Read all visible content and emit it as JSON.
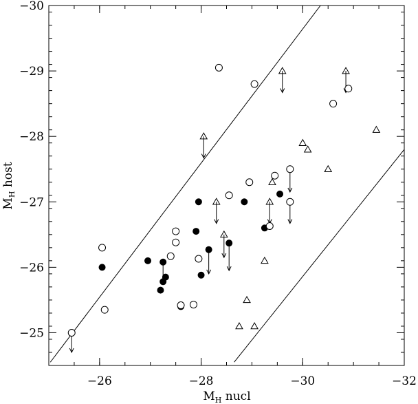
{
  "chart_data": {
    "type": "scatter",
    "title": "",
    "xlabel": {
      "base": "M",
      "sub": "H",
      "rest": " nucl"
    },
    "ylabel": {
      "base": "M",
      "sub": "H",
      "rest": " host"
    },
    "xlim": [
      -25,
      -32
    ],
    "ylim": [
      -24.5,
      -30
    ],
    "x_ticks": [
      -26,
      -28,
      -30,
      -32
    ],
    "y_ticks": [
      -25,
      -26,
      -27,
      -28,
      -29,
      -30
    ],
    "x_minor_step": 0.5,
    "y_minor_step": 0.2,
    "grid": false,
    "reference_lines": [
      {
        "points": [
          [
            -25.03,
            -24.55
          ],
          [
            -30.35,
            -30.0
          ]
        ]
      },
      {
        "points": [
          [
            -28.65,
            -24.55
          ],
          [
            -32.0,
            -27.8
          ]
        ]
      }
    ],
    "series": [
      {
        "marker": "filled-circle",
        "points": [
          [
            -26.05,
            -26.0
          ],
          [
            -26.95,
            -26.1
          ],
          [
            -27.25,
            -26.08
          ],
          [
            -27.3,
            -25.85
          ],
          [
            -27.25,
            -25.78
          ],
          [
            -27.2,
            -25.65
          ],
          [
            -27.6,
            -25.4
          ],
          [
            -27.95,
            -27.0
          ],
          [
            -27.9,
            -26.55
          ],
          [
            -28.15,
            -26.27
          ],
          [
            -28.0,
            -25.88
          ],
          [
            -28.55,
            -26.37
          ],
          [
            -28.85,
            -27.0
          ],
          [
            -29.25,
            -26.6
          ],
          [
            -29.55,
            -27.12
          ]
        ]
      },
      {
        "marker": "open-circle",
        "points": [
          [
            -25.45,
            -25.0
          ],
          [
            -26.05,
            -26.3
          ],
          [
            -26.1,
            -25.35
          ],
          [
            -27.5,
            -26.55
          ],
          [
            -27.5,
            -26.38
          ],
          [
            -27.4,
            -26.17
          ],
          [
            -27.6,
            -25.42
          ],
          [
            -27.85,
            -25.43
          ],
          [
            -27.95,
            -26.13
          ],
          [
            -28.35,
            -29.05
          ],
          [
            -28.55,
            -27.1
          ],
          [
            -28.95,
            -27.3
          ],
          [
            -29.05,
            -28.8
          ],
          [
            -29.35,
            -26.63
          ],
          [
            -29.45,
            -27.4
          ],
          [
            -29.75,
            -27.5
          ],
          [
            -29.75,
            -27.0
          ],
          [
            -30.6,
            -28.5
          ],
          [
            -30.9,
            -28.73
          ]
        ]
      },
      {
        "marker": "open-triangle",
        "points": [
          [
            -29.6,
            -29.0
          ],
          [
            -28.05,
            -28.0
          ],
          [
            -28.3,
            -27.0
          ],
          [
            -28.45,
            -26.5
          ],
          [
            -29.35,
            -27.0
          ],
          [
            -29.4,
            -27.3
          ],
          [
            -29.25,
            -26.1
          ],
          [
            -28.9,
            -25.5
          ],
          [
            -28.75,
            -25.1
          ],
          [
            -29.05,
            -25.1
          ],
          [
            -30.0,
            -27.9
          ],
          [
            -30.1,
            -27.8
          ],
          [
            -30.5,
            -27.5
          ],
          [
            -30.85,
            -29.0
          ],
          [
            -31.45,
            -28.1
          ]
        ]
      }
    ],
    "upper_limit_arrows": [
      {
        "x": -25.45,
        "y": -25.0,
        "to": -24.7
      },
      {
        "x": -29.6,
        "y": -29.0,
        "to": -28.67
      },
      {
        "x": -30.85,
        "y": -29.0,
        "to": -28.67
      },
      {
        "x": -28.05,
        "y": -28.0,
        "to": -27.67
      },
      {
        "x": -28.3,
        "y": -27.0,
        "to": -26.67
      },
      {
        "x": -29.35,
        "y": -27.0,
        "to": -26.67
      },
      {
        "x": -29.75,
        "y": -27.5,
        "to": -27.15
      },
      {
        "x": -29.75,
        "y": -27.0,
        "to": -26.67
      },
      {
        "x": -28.45,
        "y": -26.5,
        "to": -26.15
      },
      {
        "x": -28.55,
        "y": -26.37,
        "to": -25.95
      },
      {
        "x": -28.15,
        "y": -26.27,
        "to": -25.9
      },
      {
        "x": -27.25,
        "y": -26.08,
        "to": -25.75
      }
    ]
  }
}
